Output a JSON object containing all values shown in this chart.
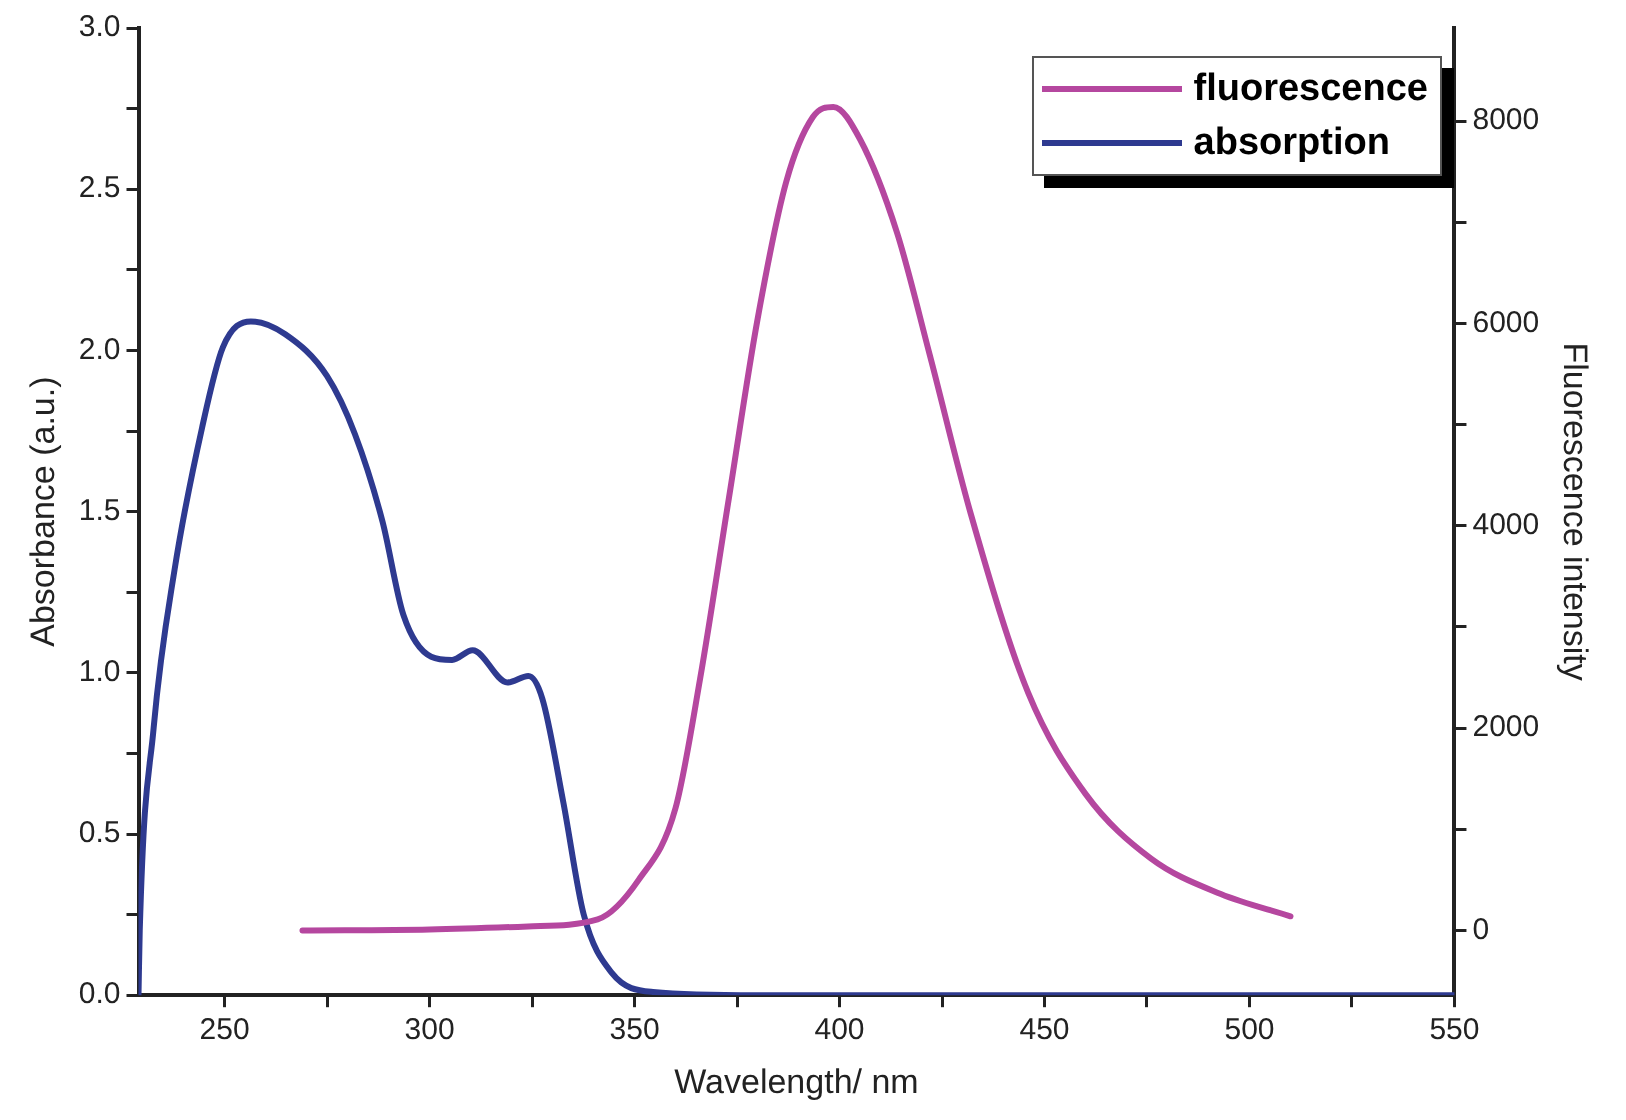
{
  "chart_data": {
    "type": "line",
    "xlabel": "Wavelength/ nm",
    "ylabel": "Absorbance (a.u.)",
    "y2label": "Fluorescence intensity",
    "xlim": [
      229,
      550
    ],
    "xticks": [
      250,
      {
        "value": 275,
        "label": null
      },
      300,
      {
        "value": 325,
        "label": null
      },
      350,
      {
        "value": 375,
        "label": null
      },
      400,
      {
        "value": 425,
        "label": null
      },
      450,
      {
        "value": 475,
        "label": null
      },
      500,
      {
        "value": 525,
        "label": null
      },
      550
    ],
    "ylim": [
      0,
      3
    ],
    "yticks": [
      {
        "value": 0,
        "label": "0.0"
      },
      {
        "value": 0.25,
        "label": null
      },
      {
        "value": 0.5,
        "label": "0.5"
      },
      {
        "value": 0.75,
        "label": null
      },
      {
        "value": 1,
        "label": "1.0"
      },
      {
        "value": 1.25,
        "label": null
      },
      {
        "value": 1.5,
        "label": "1.5"
      },
      {
        "value": 1.75,
        "label": null
      },
      {
        "value": 2,
        "label": "2.0"
      },
      {
        "value": 2.25,
        "label": null
      },
      {
        "value": 2.5,
        "label": "2.5"
      },
      {
        "value": 2.75,
        "label": null
      },
      {
        "value": 3,
        "label": "3.0"
      }
    ],
    "y2lim": [
      -640,
      8920
    ],
    "y2ticks": [
      0,
      {
        "value": 1000,
        "label": null
      },
      2000,
      {
        "value": 3000,
        "label": null
      },
      4000,
      {
        "value": 5000,
        "label": null
      },
      6000,
      {
        "value": 7000,
        "label": null
      },
      8000
    ],
    "legend": "top right",
    "grid": false,
    "marker": "none",
    "line_style": "solid",
    "series": [
      {
        "name": "fluorescence",
        "color": "#b5479f",
        "axis": "y2",
        "x": [
          269,
          300,
          324,
          341,
          351,
          360,
          366,
          373,
          380,
          387,
          393.5,
          398.5,
          405,
          414,
          422,
          432,
          446,
          460,
          476,
          493,
          510
        ],
        "values": [
          0,
          10,
          40,
          110,
          500,
          1210,
          2490,
          4270,
          6040,
          7400,
          8040,
          8140,
          7820,
          6900,
          5690,
          4120,
          2350,
          1350,
          710,
          360,
          140
        ]
      },
      {
        "name": "absorption",
        "color": "#2e3a90",
        "axis": "y",
        "x": [
          229,
          229.3,
          232.7,
          237.8,
          244.5,
          249.6,
          256.4,
          264.8,
          275,
          281.8,
          288.5,
          293.6,
          300.4,
          305.5,
          310.5,
          319,
          324.1,
          327.5,
          332.6,
          337.6,
          344.4,
          354.5,
          380,
          450,
          550
        ],
        "values": [
          0,
          0.2,
          0.83,
          1.32,
          1.76,
          2.01,
          2.09,
          2.05,
          1.92,
          1.74,
          1.47,
          1.18,
          1.05,
          1.04,
          1.07,
          0.97,
          0.99,
          0.92,
          0.6,
          0.25,
          0.07,
          0.01,
          0,
          0,
          0
        ]
      }
    ]
  }
}
